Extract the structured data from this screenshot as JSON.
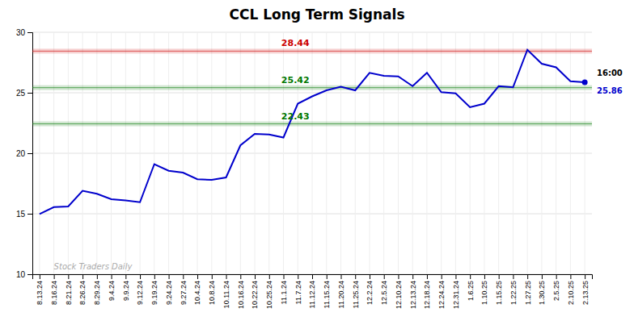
{
  "chart_data": {
    "type": "line",
    "title": "CCL Long Term Signals",
    "categories": [
      "8.13.24",
      "8.16.24",
      "8.21.24",
      "8.26.24",
      "8.29.24",
      "9.4.24",
      "9.9.24",
      "9.12.24",
      "9.19.24",
      "9.24.24",
      "9.27.24",
      "10.4.24",
      "10.8.24",
      "10.11.24",
      "10.16.24",
      "10.22.24",
      "10.25.24",
      "11.1.24",
      "11.7.24",
      "11.12.24",
      "11.15.24",
      "11.20.24",
      "11.25.24",
      "12.2.24",
      "12.5.24",
      "12.10.24",
      "12.13.24",
      "12.18.24",
      "12.24.24",
      "12.31.24",
      "1.6.25",
      "1.10.25",
      "1.15.25",
      "1.22.25",
      "1.27.25",
      "1.30.25",
      "2.5.25",
      "2.10.25",
      "2.13.25"
    ],
    "values": [
      14.97,
      15.55,
      15.6,
      16.9,
      16.65,
      16.2,
      16.1,
      15.95,
      19.1,
      18.55,
      18.4,
      17.85,
      17.8,
      18.0,
      20.65,
      21.6,
      21.55,
      21.3,
      24.1,
      24.7,
      25.2,
      25.5,
      25.2,
      26.65,
      26.4,
      26.35,
      25.55,
      26.65,
      25.05,
      24.95,
      23.8,
      24.1,
      25.55,
      25.45,
      28.55,
      27.4,
      27.1,
      25.95,
      25.86
    ],
    "color": "#0000cc",
    "ylim": [
      10,
      30
    ],
    "yticks": [
      10,
      15,
      20,
      25,
      30
    ],
    "grid": true,
    "reference_lines": [
      {
        "value": 28.44,
        "label": "28.44",
        "color": "#cc0000"
      },
      {
        "value": 25.42,
        "label": "25.42",
        "color": "#007700"
      },
      {
        "value": 22.43,
        "label": "22.43",
        "color": "#007700"
      }
    ],
    "annotations": [
      {
        "text": "16:00",
        "color": "#000000"
      },
      {
        "text": "25.86",
        "color": "#0000cc"
      },
      {
        "text": "Stock Traders Daily",
        "color": "#aaaaaa"
      }
    ]
  }
}
